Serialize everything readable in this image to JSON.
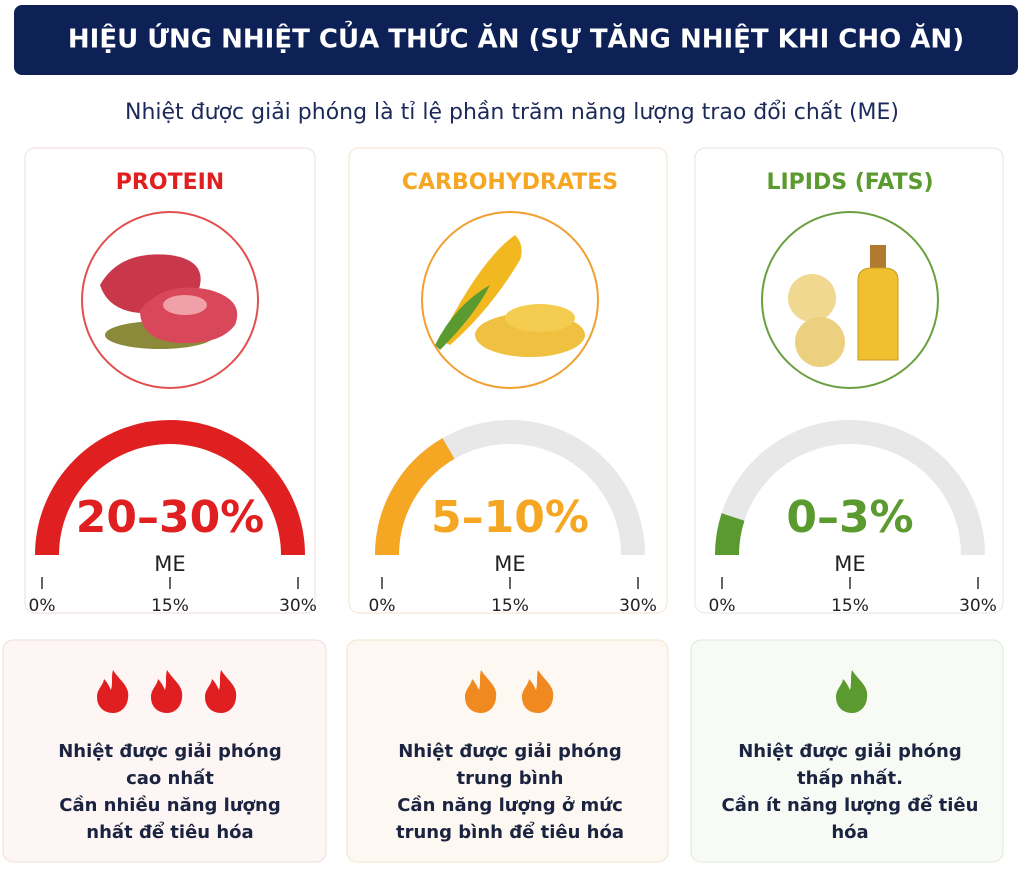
{
  "header": {
    "title": "HIỆU ỨNG NHIỆT  CỦA THỨC ĂN (SỰ TĂNG NHIỆT KHI CHO ĂN)"
  },
  "subtitle": "Nhiệt được giải phóng là tỉ lệ phần trăm năng lượng trao đổi chất (ME)",
  "panels": [
    {
      "name": "PROTEIN",
      "color": "#e02020",
      "values": [
        20,
        30
      ],
      "value_label": "20–30%",
      "unit": "ME",
      "scale": {
        "lim": [
          0,
          30
        ],
        "ticks": [
          {
            "value": 0,
            "label": "0%"
          },
          {
            "value": 15,
            "label": "15%"
          },
          {
            "value": 30,
            "label": "30%"
          }
        ]
      },
      "description": [
        "Nhiệt được giải phóng",
        "cao nhất",
        "Cần nhiều năng lượng",
        "nhất để tiêu hóa"
      ]
    },
    {
      "name": "CARBOHYDRATES",
      "color": "#f5a623",
      "values": [
        5,
        10
      ],
      "value_label": "5–10%",
      "unit": "ME",
      "scale": {
        "lim": [
          0,
          30
        ],
        "ticks": [
          {
            "value": 0,
            "label": "0%"
          },
          {
            "value": 15,
            "label": "15%"
          },
          {
            "value": 30,
            "label": "30%"
          }
        ]
      },
      "description": [
        "Nhiệt được giải phóng",
        "trung bình",
        "Cần năng lượng ở mức",
        "trung bình để tiêu hóa"
      ]
    },
    {
      "name": "LIPIDS (FATS)",
      "color": "#5a9a2e",
      "values": [
        0,
        3
      ],
      "value_label": "0–3%",
      "unit": "ME",
      "scale": {
        "lim": [
          0,
          30
        ],
        "ticks": [
          {
            "value": 0,
            "label": "0%"
          },
          {
            "value": 15,
            "label": "15%"
          },
          {
            "value": 30,
            "label": "30%"
          }
        ]
      },
      "description": [
        "Nhiệt được giải phóng",
        "thấp nhất.",
        "Cần ít năng lượng để tiêu",
        "hóa"
      ]
    }
  ]
}
